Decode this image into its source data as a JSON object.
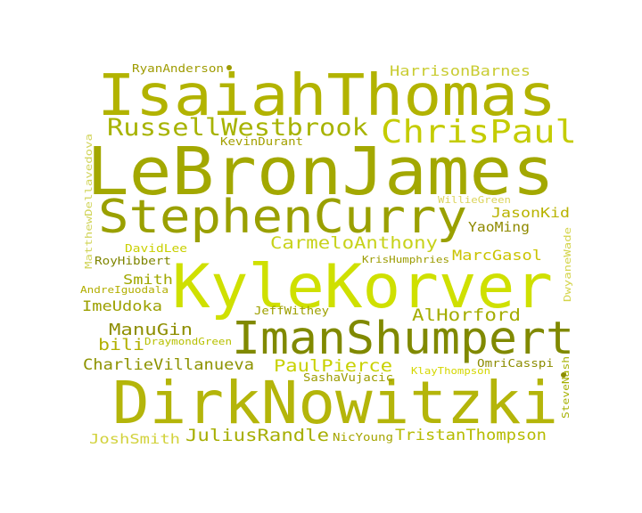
{
  "cloud": {
    "words": [
      {
        "text": "LeBronJames",
        "color": "#a3a800"
      },
      {
        "text": "IsaiahThomas",
        "color": "#b2b300"
      },
      {
        "text": "DirkNowitzki",
        "color": "#b4b50a"
      },
      {
        "text": "KyleKorver",
        "color": "#cfe000"
      },
      {
        "text": "StephenCurry",
        "color": "#9aa000"
      },
      {
        "text": "ImanShumpert",
        "color": "#808900"
      },
      {
        "text": "RussellWestbrook",
        "color": "#a7b300"
      },
      {
        "text": "ChrisPaul",
        "color": "#c4cc00"
      },
      {
        "text": "CarmeloAnthony",
        "color": "#c7d21a"
      },
      {
        "text": "AlHorford",
        "color": "#a4ad00"
      },
      {
        "text": "PaulPierce",
        "color": "#c8d100"
      },
      {
        "text": "JuliusRandle",
        "color": "#a6ae00"
      },
      {
        "text": "TristanThompson",
        "color": "#b6bb00"
      },
      {
        "text": "CharlieVillanueva",
        "color": "#8d9300"
      },
      {
        "text": "HarrisonBarnes",
        "color": "#c9cc33"
      },
      {
        "text": "ManuGin",
        "color": "#8e8e00"
      },
      {
        "text": "bili",
        "color": "#b2b000"
      },
      {
        "text": "JoshSmith",
        "color": "#d2d23c"
      },
      {
        "text": "ImeUdoka",
        "color": "#9ca000"
      },
      {
        "text": "MarcGasol",
        "color": "#c9c300"
      },
      {
        "text": "JasonKid",
        "color": "#b8b300"
      },
      {
        "text": "YaoMing",
        "color": "#8f8a00"
      },
      {
        "text": "Smith",
        "color": "#a0a800"
      },
      {
        "text": "OmriCasspi",
        "color": "#8c8c00"
      },
      {
        "text": "SashaVujacic",
        "color": "#9c9c00"
      },
      {
        "text": "RyanAnderson",
        "color": "#9e9b00"
      },
      {
        "text": "KevinDurant",
        "color": "#a3a000"
      },
      {
        "text": "DavidLee",
        "color": "#c9d000"
      },
      {
        "text": "RoyHibbert",
        "color": "#7f8500"
      },
      {
        "text": "AndreIguodala",
        "color": "#b2ae00"
      },
      {
        "text": "JeffWithey",
        "color": "#9ea000"
      },
      {
        "text": "DraymondGreen",
        "color": "#b7c000"
      },
      {
        "text": "KlayThompson",
        "color": "#d4d700"
      },
      {
        "text": "NicYoung",
        "color": "#a5a500"
      },
      {
        "text": "KrisHumphries",
        "color": "#9c9c00"
      },
      {
        "text": "WillieGreen",
        "color": "#dcd55c"
      },
      {
        "text": "MatthewDellavedova",
        "color": "#d1d45a"
      },
      {
        "text": "DwyaneWade",
        "color": "#d4d44a"
      },
      {
        "text": "SteveNash",
        "color": "#a5b000"
      }
    ]
  }
}
